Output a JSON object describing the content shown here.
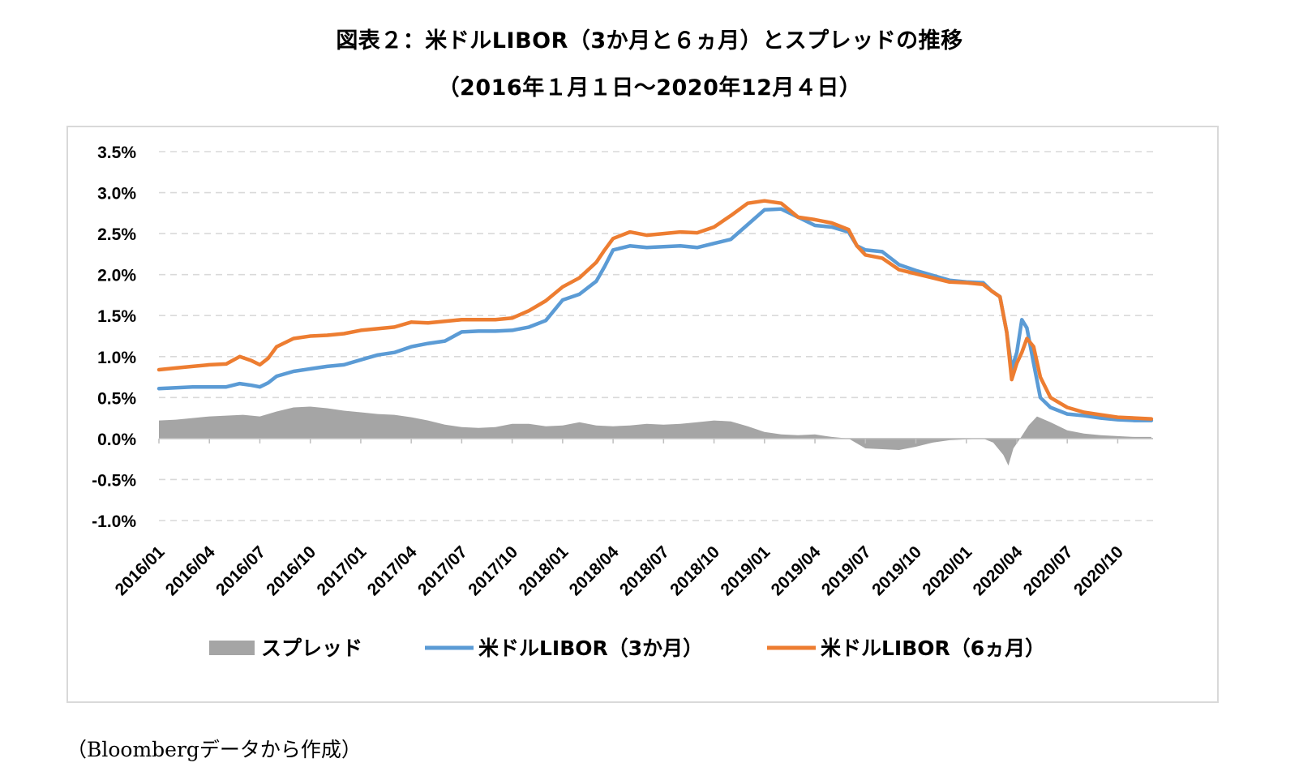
{
  "title_line1": "図表２：米ドルLIBOR（3か月と６ヵ月）とスプレッドの推移",
  "title_line2": "（2016年１月１日～2020年12月４日）",
  "source": "（Bloombergデータから作成）",
  "chart_data": {
    "type": "line",
    "title": "図表２：米ドルLIBOR（3か月と６ヵ月）とスプレッドの推移",
    "subtitle": "（2016年１月１日～2020年12月４日）",
    "xlabel": "",
    "ylabel": "",
    "ylim": [
      -1.0,
      3.5
    ],
    "xlim": [
      0,
      59.1
    ],
    "y_unit": "%",
    "grid": "horizontal dashed",
    "legend_position": "bottom",
    "y_ticks": [
      "3.5%",
      "3.0%",
      "2.5%",
      "2.0%",
      "1.5%",
      "1.0%",
      "0.5%",
      "0.0%",
      "-0.5%",
      "-1.0%"
    ],
    "y_tick_values": [
      3.5,
      3.0,
      2.5,
      2.0,
      1.5,
      1.0,
      0.5,
      0.0,
      -0.5,
      -1.0
    ],
    "x_ticks": [
      "2016/01",
      "2016/04",
      "2016/07",
      "2016/10",
      "2017/01",
      "2017/04",
      "2017/07",
      "2017/10",
      "2018/01",
      "2018/04",
      "2018/07",
      "2018/10",
      "2019/01",
      "2019/04",
      "2019/07",
      "2019/10",
      "2020/01",
      "2020/04",
      "2020/07",
      "2020/10"
    ],
    "x_tick_positions": [
      0,
      3,
      6,
      9,
      12,
      15,
      18,
      21,
      24,
      27,
      30,
      33,
      36,
      39,
      42,
      45,
      48,
      51,
      54,
      57
    ],
    "series": [
      {
        "name": "スプレッド",
        "legend_label": "スプレッド",
        "kind": "area",
        "color": "#a5a5a5",
        "points": [
          [
            0,
            0.22
          ],
          [
            1,
            0.23
          ],
          [
            2,
            0.25
          ],
          [
            3,
            0.27
          ],
          [
            4,
            0.28
          ],
          [
            5,
            0.29
          ],
          [
            6,
            0.27
          ],
          [
            7,
            0.33
          ],
          [
            8,
            0.38
          ],
          [
            9,
            0.39
          ],
          [
            10,
            0.37
          ],
          [
            11,
            0.34
          ],
          [
            12,
            0.32
          ],
          [
            13,
            0.3
          ],
          [
            14,
            0.29
          ],
          [
            15,
            0.26
          ],
          [
            16,
            0.22
          ],
          [
            17,
            0.17
          ],
          [
            18,
            0.14
          ],
          [
            19,
            0.13
          ],
          [
            20,
            0.14
          ],
          [
            21,
            0.18
          ],
          [
            22,
            0.18
          ],
          [
            23,
            0.15
          ],
          [
            24,
            0.16
          ],
          [
            25,
            0.2
          ],
          [
            26,
            0.16
          ],
          [
            27,
            0.15
          ],
          [
            28,
            0.16
          ],
          [
            29,
            0.18
          ],
          [
            30,
            0.17
          ],
          [
            31,
            0.18
          ],
          [
            32,
            0.2
          ],
          [
            33,
            0.22
          ],
          [
            34,
            0.21
          ],
          [
            35,
            0.15
          ],
          [
            36,
            0.08
          ],
          [
            37,
            0.05
          ],
          [
            38,
            0.04
          ],
          [
            39,
            0.05
          ],
          [
            40,
            0.02
          ],
          [
            41,
            0.0
          ],
          [
            42,
            -0.12
          ],
          [
            43,
            -0.13
          ],
          [
            44,
            -0.14
          ],
          [
            45,
            -0.1
          ],
          [
            46,
            -0.05
          ],
          [
            47,
            -0.02
          ],
          [
            48,
            -0.01
          ],
          [
            49,
            0.0
          ],
          [
            49.6,
            -0.05
          ],
          [
            50.2,
            -0.2
          ],
          [
            50.5,
            -0.33
          ],
          [
            50.8,
            -0.12
          ],
          [
            51.2,
            0.0
          ],
          [
            51.7,
            0.16
          ],
          [
            52.2,
            0.27
          ],
          [
            53,
            0.2
          ],
          [
            54,
            0.1
          ],
          [
            55,
            0.06
          ],
          [
            56,
            0.04
          ],
          [
            57,
            0.03
          ],
          [
            58,
            0.02
          ],
          [
            59,
            0.02
          ]
        ]
      },
      {
        "name": "米ドルLIBOR（3か月）",
        "legend_label": "米ドルLIBOR（3か月）",
        "kind": "line",
        "color": "#5b9bd5",
        "points": [
          [
            0,
            0.61
          ],
          [
            1,
            0.62
          ],
          [
            2,
            0.63
          ],
          [
            3,
            0.63
          ],
          [
            4,
            0.63
          ],
          [
            4.8,
            0.67
          ],
          [
            5.5,
            0.65
          ],
          [
            6,
            0.63
          ],
          [
            6.5,
            0.68
          ],
          [
            7,
            0.76
          ],
          [
            8,
            0.82
          ],
          [
            9,
            0.85
          ],
          [
            10,
            0.88
          ],
          [
            11,
            0.9
          ],
          [
            12,
            0.96
          ],
          [
            13,
            1.02
          ],
          [
            14,
            1.05
          ],
          [
            15,
            1.12
          ],
          [
            16,
            1.16
          ],
          [
            17,
            1.19
          ],
          [
            18,
            1.3
          ],
          [
            19,
            1.31
          ],
          [
            20,
            1.31
          ],
          [
            21,
            1.32
          ],
          [
            22,
            1.36
          ],
          [
            23,
            1.44
          ],
          [
            24,
            1.69
          ],
          [
            25,
            1.76
          ],
          [
            26,
            1.92
          ],
          [
            26.5,
            2.1
          ],
          [
            27,
            2.3
          ],
          [
            28,
            2.35
          ],
          [
            29,
            2.33
          ],
          [
            30,
            2.34
          ],
          [
            31,
            2.35
          ],
          [
            32,
            2.33
          ],
          [
            33,
            2.38
          ],
          [
            34,
            2.43
          ],
          [
            35,
            2.61
          ],
          [
            36,
            2.79
          ],
          [
            37,
            2.8
          ],
          [
            38,
            2.7
          ],
          [
            39,
            2.6
          ],
          [
            40,
            2.58
          ],
          [
            41,
            2.52
          ],
          [
            41.5,
            2.35
          ],
          [
            42,
            2.3
          ],
          [
            43,
            2.28
          ],
          [
            44,
            2.12
          ],
          [
            45,
            2.05
          ],
          [
            46,
            1.99
          ],
          [
            47,
            1.93
          ],
          [
            48,
            1.91
          ],
          [
            49,
            1.9
          ],
          [
            49.5,
            1.8
          ],
          [
            50,
            1.73
          ],
          [
            50.4,
            1.3
          ],
          [
            50.7,
            0.85
          ],
          [
            51.0,
            1.05
          ],
          [
            51.3,
            1.45
          ],
          [
            51.6,
            1.35
          ],
          [
            52,
            0.92
          ],
          [
            52.4,
            0.5
          ],
          [
            53,
            0.38
          ],
          [
            54,
            0.3
          ],
          [
            55,
            0.28
          ],
          [
            56,
            0.25
          ],
          [
            57,
            0.23
          ],
          [
            58,
            0.22
          ],
          [
            59,
            0.22
          ]
        ]
      },
      {
        "name": "米ドルLIBOR（6ヵ月）",
        "legend_label": "米ドルLIBOR（6ヵ月）",
        "kind": "line",
        "color": "#ed7d31",
        "points": [
          [
            0,
            0.84
          ],
          [
            1,
            0.86
          ],
          [
            2,
            0.88
          ],
          [
            3,
            0.9
          ],
          [
            4,
            0.91
          ],
          [
            4.8,
            1.0
          ],
          [
            5.5,
            0.95
          ],
          [
            6,
            0.9
          ],
          [
            6.5,
            0.98
          ],
          [
            7,
            1.12
          ],
          [
            8,
            1.22
          ],
          [
            9,
            1.25
          ],
          [
            10,
            1.26
          ],
          [
            11,
            1.28
          ],
          [
            12,
            1.32
          ],
          [
            13,
            1.34
          ],
          [
            14,
            1.36
          ],
          [
            15,
            1.42
          ],
          [
            16,
            1.41
          ],
          [
            17,
            1.43
          ],
          [
            18,
            1.45
          ],
          [
            19,
            1.45
          ],
          [
            20,
            1.45
          ],
          [
            21,
            1.47
          ],
          [
            22,
            1.56
          ],
          [
            23,
            1.68
          ],
          [
            24,
            1.85
          ],
          [
            25,
            1.96
          ],
          [
            26,
            2.15
          ],
          [
            26.5,
            2.3
          ],
          [
            27,
            2.44
          ],
          [
            28,
            2.52
          ],
          [
            29,
            2.48
          ],
          [
            30,
            2.5
          ],
          [
            31,
            2.52
          ],
          [
            32,
            2.51
          ],
          [
            33,
            2.58
          ],
          [
            34,
            2.72
          ],
          [
            35,
            2.87
          ],
          [
            36,
            2.9
          ],
          [
            37,
            2.87
          ],
          [
            38,
            2.7
          ],
          [
            39,
            2.67
          ],
          [
            40,
            2.63
          ],
          [
            41,
            2.55
          ],
          [
            41.5,
            2.35
          ],
          [
            42,
            2.24
          ],
          [
            43,
            2.2
          ],
          [
            44,
            2.06
          ],
          [
            45,
            2.01
          ],
          [
            46,
            1.96
          ],
          [
            47,
            1.91
          ],
          [
            48,
            1.9
          ],
          [
            49,
            1.88
          ],
          [
            49.5,
            1.8
          ],
          [
            50,
            1.73
          ],
          [
            50.4,
            1.3
          ],
          [
            50.7,
            0.72
          ],
          [
            51.0,
            0.92
          ],
          [
            51.3,
            1.05
          ],
          [
            51.6,
            1.22
          ],
          [
            52,
            1.12
          ],
          [
            52.4,
            0.75
          ],
          [
            53,
            0.5
          ],
          [
            54,
            0.38
          ],
          [
            55,
            0.32
          ],
          [
            56,
            0.29
          ],
          [
            57,
            0.26
          ],
          [
            58,
            0.25
          ],
          [
            59,
            0.24
          ]
        ]
      }
    ]
  }
}
